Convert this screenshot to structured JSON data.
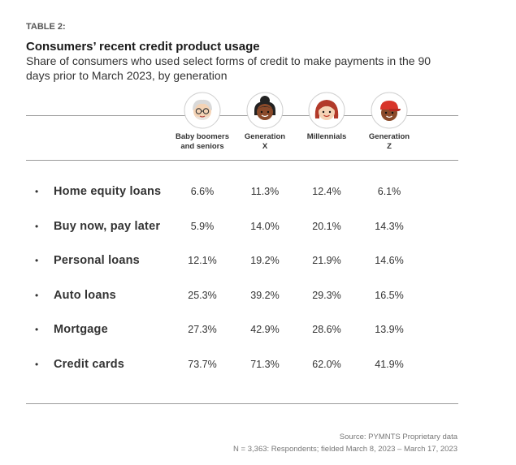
{
  "header": {
    "table_label": "TABLE 2:",
    "title": "Consumers’ recent credit product usage",
    "subtitle": "Share of consumers who used select forms of credit to make payments in the 90 days prior to March 2023, by generation"
  },
  "footer": {
    "source": "Source: PYMNTS Proprietary data",
    "note": "N = 3,363: Respondents; fielded March 8, 2023 – March 17, 2023"
  },
  "columns": [
    {
      "line1": "Baby boomers",
      "line2": "and seniors",
      "icon": "boomer-avatar-icon"
    },
    {
      "line1": "Generation",
      "line2": "X",
      "icon": "gen-x-avatar-icon"
    },
    {
      "line1": "Millennials",
      "line2": "",
      "icon": "millennial-avatar-icon"
    },
    {
      "line1": "Generation",
      "line2": "Z",
      "icon": "gen-z-avatar-icon"
    }
  ],
  "colors": {
    "rule": "#9a9a9a",
    "skin_light": "#f4d3b5",
    "skin_dark": "#8a4a2a",
    "hair_gray": "#d9d9d9",
    "hair_black": "#222222",
    "hair_red": "#b23a2a",
    "cap_red": "#d8342a"
  },
  "chart_data": {
    "type": "table",
    "title": "Consumers’ recent credit product usage",
    "columns": [
      "Baby boomers and seniors",
      "Generation X",
      "Millennials",
      "Generation Z"
    ],
    "rows": [
      {
        "label": "Home equity loans",
        "values": [
          "6.6%",
          "11.3%",
          "12.4%",
          "6.1%"
        ]
      },
      {
        "label": "Buy now, pay later",
        "values": [
          "5.9%",
          "14.0%",
          "20.1%",
          "14.3%"
        ]
      },
      {
        "label": "Personal loans",
        "values": [
          "12.1%",
          "19.2%",
          "21.9%",
          "14.6%"
        ]
      },
      {
        "label": "Auto loans",
        "values": [
          "25.3%",
          "39.2%",
          "29.3%",
          "16.5%"
        ]
      },
      {
        "label": "Mortgage",
        "values": [
          "27.3%",
          "42.9%",
          "28.6%",
          "13.9%"
        ]
      },
      {
        "label": "Credit cards",
        "values": [
          "73.7%",
          "71.3%",
          "62.0%",
          "41.9%"
        ]
      }
    ]
  }
}
